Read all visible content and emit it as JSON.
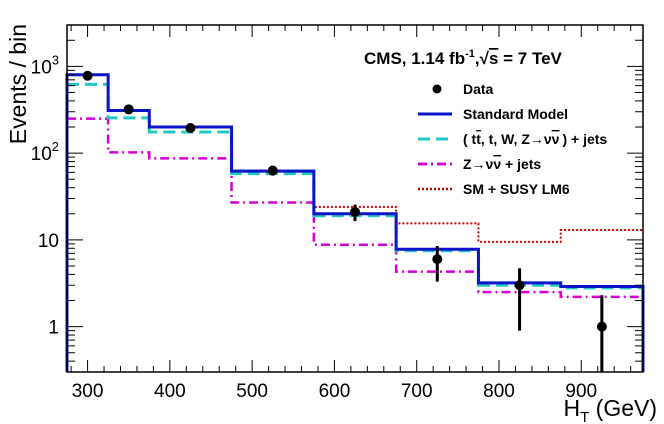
{
  "chart_data": {
    "type": "histogram",
    "title": "",
    "annotation": {
      "prefix": "CMS, 1.14 fb",
      "sup": "-1",
      "sep": ",",
      "sqrt": "√",
      "s": "s",
      "suffix": " = 7 TeV"
    },
    "xlabel": {
      "main": "H",
      "sub": "T",
      "unit": " (GeV)"
    },
    "ylabel": "Events / bin",
    "xlim": [
      275,
      975
    ],
    "ylim": [
      0.3,
      3000
    ],
    "yscale": "log",
    "x_ticks": [
      "300",
      "400",
      "500",
      "600",
      "700",
      "800",
      "900"
    ],
    "y_ticks": [
      {
        "value": 1,
        "base": "1",
        "exp": ""
      },
      {
        "value": 10,
        "base": "10",
        "exp": ""
      },
      {
        "value": 100,
        "base": "10",
        "exp": "2"
      },
      {
        "value": 1000,
        "base": "10",
        "exp": "3"
      }
    ],
    "bin_edges": [
      275,
      325,
      375,
      475,
      575,
      675,
      775,
      875,
      975
    ],
    "series": [
      {
        "key": "sm",
        "name": "Standard Model",
        "color": "#0a14c8",
        "style": "solid",
        "values": [
          800,
          310,
          200,
          62,
          20,
          7.8,
          3.2,
          2.9
        ]
      },
      {
        "key": "ttbar",
        "name_parts": [
          "( t",
          "t",
          ", t, W, Z→ν",
          "ν",
          ") + jets"
        ],
        "color": "#22c8c8",
        "style": "dashed",
        "values": [
          620,
          255,
          175,
          58,
          19,
          7.5,
          3.0,
          2.8
        ]
      },
      {
        "key": "znunu",
        "name_parts": [
          "Z→ν",
          "ν",
          " + jets"
        ],
        "color": "#d400d4",
        "style": "dashdot",
        "values": [
          250,
          102,
          87,
          27,
          8.8,
          4.3,
          2.5,
          2.2
        ]
      },
      {
        "key": "susy",
        "name": "SM + SUSY LM6",
        "color": "#cc0000",
        "style": "dotted",
        "values": [
          800,
          310,
          200,
          63,
          24,
          15.5,
          9.5,
          13
        ]
      }
    ],
    "data_points": {
      "name": "Data",
      "color": "#000000",
      "x": [
        300,
        350,
        425,
        525,
        625,
        725,
        825,
        925
      ],
      "y": [
        780,
        320,
        195,
        63,
        21,
        6,
        3,
        1
      ],
      "err_low": [
        28,
        18,
        14,
        8,
        4.5,
        2.7,
        2.1,
        0.83
      ],
      "err_high": [
        28,
        18,
        14,
        8,
        4.5,
        2.5,
        1.7,
        1.3
      ]
    }
  }
}
